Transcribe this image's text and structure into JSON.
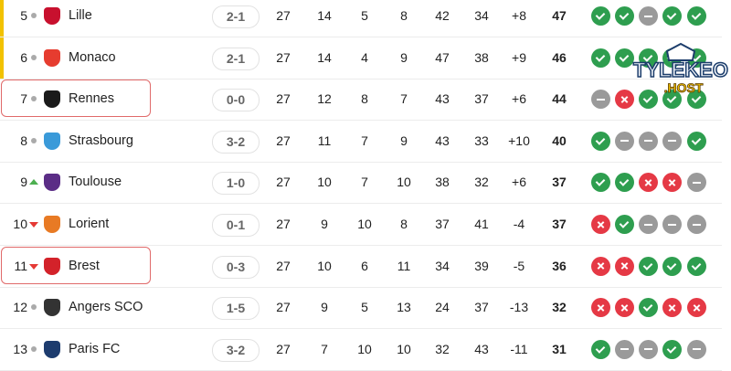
{
  "colors": {
    "win": "#2e9e4f",
    "loss": "#e53945",
    "draw": "#9a9a9a",
    "qualification_bar": "#f2c200",
    "highlight_border": "#e06a6a"
  },
  "form_icons": {
    "W": "check-icon",
    "L": "x-icon",
    "D": "minus-icon"
  },
  "watermark": {
    "line1": "TYLEKEO",
    "line2": ".HOST"
  },
  "rows": [
    {
      "rank": "5",
      "trend": "same",
      "team": "Lille",
      "logo_color": "#c8102e",
      "last": "2-1",
      "p": "27",
      "w": "14",
      "d": "5",
      "l": "8",
      "gf": "42",
      "ga": "34",
      "gd": "+8",
      "pts": "47",
      "form": [
        "W",
        "W",
        "D",
        "W",
        "W"
      ],
      "qual": true,
      "highlight": false
    },
    {
      "rank": "6",
      "trend": "same",
      "team": "Monaco",
      "logo_color": "#e63c2f",
      "last": "2-1",
      "p": "27",
      "w": "14",
      "d": "4",
      "l": "9",
      "gf": "47",
      "ga": "38",
      "gd": "+9",
      "pts": "46",
      "form": [
        "W",
        "W",
        "W",
        "W",
        "W"
      ],
      "qual": true,
      "highlight": false
    },
    {
      "rank": "7",
      "trend": "same",
      "team": "Rennes",
      "logo_color": "#1a1a1a",
      "last": "0-0",
      "p": "27",
      "w": "12",
      "d": "8",
      "l": "7",
      "gf": "43",
      "ga": "37",
      "gd": "+6",
      "pts": "44",
      "form": [
        "D",
        "L",
        "W",
        "W",
        "W"
      ],
      "qual": false,
      "highlight": true
    },
    {
      "rank": "8",
      "trend": "same",
      "team": "Strasbourg",
      "logo_color": "#3a9ad9",
      "last": "3-2",
      "p": "27",
      "w": "11",
      "d": "7",
      "l": "9",
      "gf": "43",
      "ga": "33",
      "gd": "+10",
      "pts": "40",
      "form": [
        "W",
        "D",
        "D",
        "D",
        "W"
      ],
      "qual": false,
      "highlight": false
    },
    {
      "rank": "9",
      "trend": "up",
      "team": "Toulouse",
      "logo_color": "#5b2d86",
      "last": "1-0",
      "p": "27",
      "w": "10",
      "d": "7",
      "l": "10",
      "gf": "38",
      "ga": "32",
      "gd": "+6",
      "pts": "37",
      "form": [
        "W",
        "W",
        "L",
        "L",
        "D"
      ],
      "qual": false,
      "highlight": false
    },
    {
      "rank": "10",
      "trend": "down",
      "team": "Lorient",
      "logo_color": "#e87a24",
      "last": "0-1",
      "p": "27",
      "w": "9",
      "d": "10",
      "l": "8",
      "gf": "37",
      "ga": "41",
      "gd": "-4",
      "pts": "37",
      "form": [
        "L",
        "W",
        "D",
        "D",
        "D"
      ],
      "qual": false,
      "highlight": false
    },
    {
      "rank": "11",
      "trend": "down",
      "team": "Brest",
      "logo_color": "#d3222a",
      "last": "0-3",
      "p": "27",
      "w": "10",
      "d": "6",
      "l": "11",
      "gf": "34",
      "ga": "39",
      "gd": "-5",
      "pts": "36",
      "form": [
        "L",
        "L",
        "W",
        "W",
        "W"
      ],
      "qual": false,
      "highlight": true
    },
    {
      "rank": "12",
      "trend": "same",
      "team": "Angers SCO",
      "logo_color": "#333333",
      "last": "1-5",
      "p": "27",
      "w": "9",
      "d": "5",
      "l": "13",
      "gf": "24",
      "ga": "37",
      "gd": "-13",
      "pts": "32",
      "form": [
        "L",
        "L",
        "W",
        "L",
        "L"
      ],
      "qual": false,
      "highlight": false
    },
    {
      "rank": "13",
      "trend": "same",
      "team": "Paris FC",
      "logo_color": "#1d3c6e",
      "last": "3-2",
      "p": "27",
      "w": "7",
      "d": "10",
      "l": "10",
      "gf": "32",
      "ga": "43",
      "gd": "-11",
      "pts": "31",
      "form": [
        "W",
        "D",
        "D",
        "W",
        "D"
      ],
      "qual": false,
      "highlight": false
    }
  ]
}
